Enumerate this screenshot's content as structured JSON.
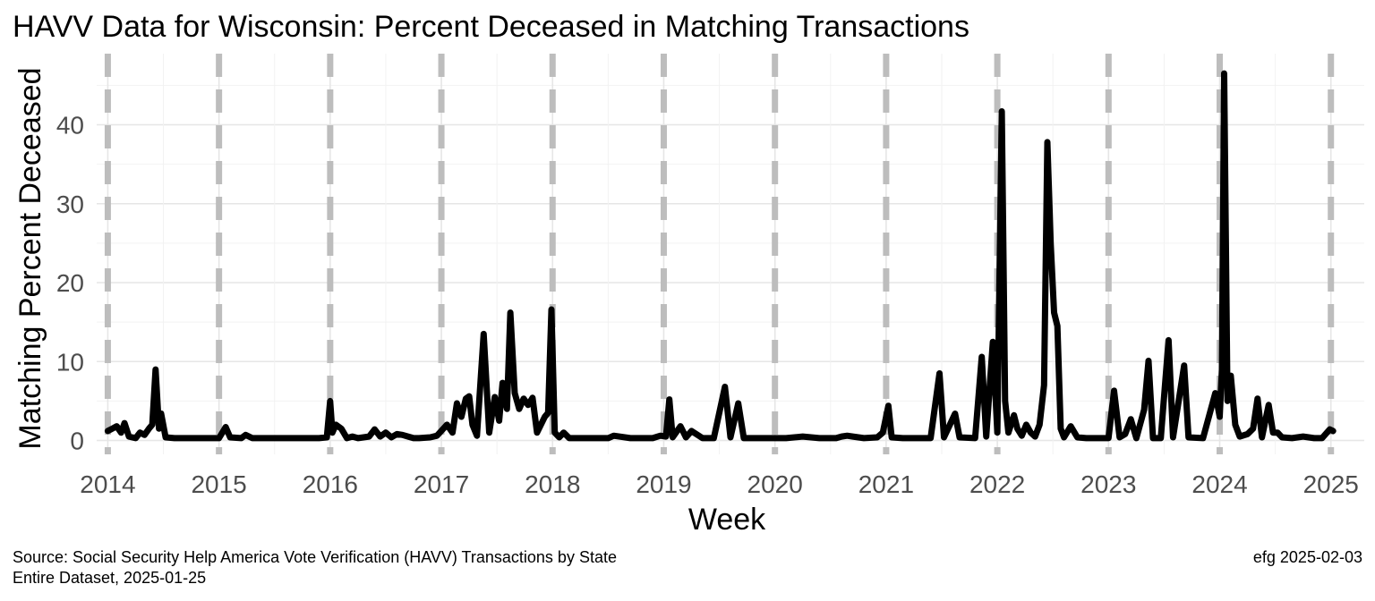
{
  "chart_data": {
    "type": "line",
    "title": "HAVV Data for Wisconsin:  Percent Deceased in Matching Transactions",
    "xlabel": "Week",
    "ylabel": "Matching Percent Deceased",
    "xlim": [
      2013.9,
      2025.3
    ],
    "ylim": [
      -1,
      48
    ],
    "x_ticks": [
      "2014",
      "2015",
      "2016",
      "2017",
      "2018",
      "2019",
      "2020",
      "2021",
      "2022",
      "2023",
      "2024",
      "2025"
    ],
    "y_ticks": [
      "0",
      "10",
      "20",
      "30",
      "40"
    ],
    "vlines": [
      2014,
      2015,
      2016,
      2017,
      2018,
      2019,
      2020,
      2021,
      2022,
      2023,
      2024,
      2025
    ],
    "grid": true,
    "legend": "none",
    "series": [
      {
        "color": "#000000",
        "points": [
          [
            2014.0,
            1.2
          ],
          [
            2014.04,
            1.5
          ],
          [
            2014.08,
            1.8
          ],
          [
            2014.12,
            1.0
          ],
          [
            2014.15,
            2.2
          ],
          [
            2014.19,
            0.5
          ],
          [
            2014.25,
            0.3
          ],
          [
            2014.29,
            1.0
          ],
          [
            2014.33,
            0.7
          ],
          [
            2014.37,
            1.5
          ],
          [
            2014.4,
            2.0
          ],
          [
            2014.43,
            9.0
          ],
          [
            2014.46,
            1.5
          ],
          [
            2014.48,
            3.4
          ],
          [
            2014.52,
            0.4
          ],
          [
            2014.6,
            0.3
          ],
          [
            2014.7,
            0.3
          ],
          [
            2014.8,
            0.3
          ],
          [
            2014.9,
            0.3
          ],
          [
            2015.0,
            0.3
          ],
          [
            2015.03,
            1.0
          ],
          [
            2015.06,
            1.7
          ],
          [
            2015.1,
            0.4
          ],
          [
            2015.2,
            0.3
          ],
          [
            2015.24,
            0.7
          ],
          [
            2015.3,
            0.3
          ],
          [
            2015.5,
            0.3
          ],
          [
            2015.7,
            0.3
          ],
          [
            2015.9,
            0.3
          ],
          [
            2015.97,
            0.4
          ],
          [
            2016.0,
            5.0
          ],
          [
            2016.02,
            1.0
          ],
          [
            2016.05,
            2.0
          ],
          [
            2016.1,
            1.5
          ],
          [
            2016.15,
            0.3
          ],
          [
            2016.2,
            0.5
          ],
          [
            2016.25,
            0.3
          ],
          [
            2016.3,
            0.4
          ],
          [
            2016.35,
            0.5
          ],
          [
            2016.4,
            1.4
          ],
          [
            2016.45,
            0.5
          ],
          [
            2016.5,
            1.0
          ],
          [
            2016.55,
            0.4
          ],
          [
            2016.6,
            0.8
          ],
          [
            2016.65,
            0.7
          ],
          [
            2016.7,
            0.5
          ],
          [
            2016.75,
            0.3
          ],
          [
            2016.8,
            0.3
          ],
          [
            2016.9,
            0.4
          ],
          [
            2016.96,
            0.6
          ],
          [
            2017.05,
            2.0
          ],
          [
            2017.1,
            1.0
          ],
          [
            2017.14,
            4.7
          ],
          [
            2017.18,
            3.0
          ],
          [
            2017.22,
            5.3
          ],
          [
            2017.25,
            5.6
          ],
          [
            2017.28,
            2.0
          ],
          [
            2017.32,
            0.6
          ],
          [
            2017.38,
            13.5
          ],
          [
            2017.43,
            1.0
          ],
          [
            2017.48,
            5.5
          ],
          [
            2017.52,
            2.5
          ],
          [
            2017.55,
            7.3
          ],
          [
            2017.59,
            4.0
          ],
          [
            2017.62,
            16.2
          ],
          [
            2017.66,
            6.0
          ],
          [
            2017.7,
            4.0
          ],
          [
            2017.74,
            5.3
          ],
          [
            2017.78,
            4.5
          ],
          [
            2017.82,
            5.4
          ],
          [
            2017.86,
            1.0
          ],
          [
            2017.93,
            3.0
          ],
          [
            2017.96,
            3.5
          ],
          [
            2017.99,
            16.6
          ],
          [
            2018.02,
            1.0
          ],
          [
            2018.06,
            0.4
          ],
          [
            2018.1,
            1.0
          ],
          [
            2018.15,
            0.3
          ],
          [
            2018.3,
            0.3
          ],
          [
            2018.5,
            0.3
          ],
          [
            2018.55,
            0.6
          ],
          [
            2018.7,
            0.3
          ],
          [
            2018.9,
            0.3
          ],
          [
            2018.97,
            0.6
          ],
          [
            2019.02,
            0.5
          ],
          [
            2019.05,
            5.2
          ],
          [
            2019.08,
            0.4
          ],
          [
            2019.15,
            1.8
          ],
          [
            2019.2,
            0.4
          ],
          [
            2019.25,
            1.2
          ],
          [
            2019.35,
            0.3
          ],
          [
            2019.45,
            0.3
          ],
          [
            2019.55,
            6.8
          ],
          [
            2019.6,
            0.4
          ],
          [
            2019.67,
            4.7
          ],
          [
            2019.72,
            0.3
          ],
          [
            2019.85,
            0.3
          ],
          [
            2019.95,
            0.3
          ],
          [
            2020.1,
            0.3
          ],
          [
            2020.25,
            0.5
          ],
          [
            2020.4,
            0.3
          ],
          [
            2020.55,
            0.3
          ],
          [
            2020.6,
            0.5
          ],
          [
            2020.65,
            0.6
          ],
          [
            2020.7,
            0.5
          ],
          [
            2020.8,
            0.3
          ],
          [
            2020.92,
            0.4
          ],
          [
            2020.97,
            1.0
          ],
          [
            2021.02,
            4.4
          ],
          [
            2021.05,
            0.4
          ],
          [
            2021.15,
            0.3
          ],
          [
            2021.3,
            0.3
          ],
          [
            2021.4,
            0.3
          ],
          [
            2021.48,
            8.5
          ],
          [
            2021.52,
            0.4
          ],
          [
            2021.62,
            3.4
          ],
          [
            2021.66,
            0.4
          ],
          [
            2021.8,
            0.3
          ],
          [
            2021.86,
            10.6
          ],
          [
            2021.9,
            0.5
          ],
          [
            2021.96,
            12.5
          ],
          [
            2022.0,
            1.0
          ],
          [
            2022.04,
            41.7
          ],
          [
            2022.07,
            5.0
          ],
          [
            2022.1,
            1.0
          ],
          [
            2022.15,
            3.2
          ],
          [
            2022.18,
            1.5
          ],
          [
            2022.22,
            0.6
          ],
          [
            2022.26,
            2.0
          ],
          [
            2022.3,
            1.0
          ],
          [
            2022.34,
            0.5
          ],
          [
            2022.38,
            2.0
          ],
          [
            2022.42,
            7.0
          ],
          [
            2022.45,
            37.8
          ],
          [
            2022.48,
            25.0
          ],
          [
            2022.51,
            16.2
          ],
          [
            2022.54,
            14.5
          ],
          [
            2022.57,
            1.5
          ],
          [
            2022.6,
            0.4
          ],
          [
            2022.66,
            1.8
          ],
          [
            2022.72,
            0.4
          ],
          [
            2022.8,
            0.3
          ],
          [
            2022.92,
            0.3
          ],
          [
            2023.0,
            0.3
          ],
          [
            2023.05,
            6.3
          ],
          [
            2023.1,
            0.4
          ],
          [
            2023.15,
            0.8
          ],
          [
            2023.2,
            2.7
          ],
          [
            2023.25,
            0.3
          ],
          [
            2023.32,
            3.9
          ],
          [
            2023.36,
            10.1
          ],
          [
            2023.4,
            0.3
          ],
          [
            2023.47,
            0.3
          ],
          [
            2023.54,
            12.7
          ],
          [
            2023.58,
            0.4
          ],
          [
            2023.68,
            9.5
          ],
          [
            2023.72,
            0.4
          ],
          [
            2023.85,
            0.3
          ],
          [
            2023.96,
            6.0
          ],
          [
            2024.0,
            3.0
          ],
          [
            2024.02,
            9.0
          ],
          [
            2024.04,
            46.5
          ],
          [
            2024.07,
            5.0
          ],
          [
            2024.1,
            8.2
          ],
          [
            2024.14,
            2.0
          ],
          [
            2024.18,
            0.5
          ],
          [
            2024.25,
            0.8
          ],
          [
            2024.3,
            1.5
          ],
          [
            2024.34,
            5.3
          ],
          [
            2024.38,
            0.4
          ],
          [
            2024.44,
            4.5
          ],
          [
            2024.48,
            1.0
          ],
          [
            2024.52,
            1.0
          ],
          [
            2024.56,
            0.4
          ],
          [
            2024.65,
            0.3
          ],
          [
            2024.75,
            0.5
          ],
          [
            2024.85,
            0.3
          ],
          [
            2024.92,
            0.3
          ],
          [
            2024.99,
            1.4
          ],
          [
            2025.02,
            1.2
          ]
        ]
      }
    ]
  },
  "footer": {
    "source_line1": "Source:  Social Security Help America Vote Verification (HAVV) Transactions by State",
    "source_line2": "Entire Dataset, 2025-01-25",
    "credit": "efg 2025-02-03"
  }
}
